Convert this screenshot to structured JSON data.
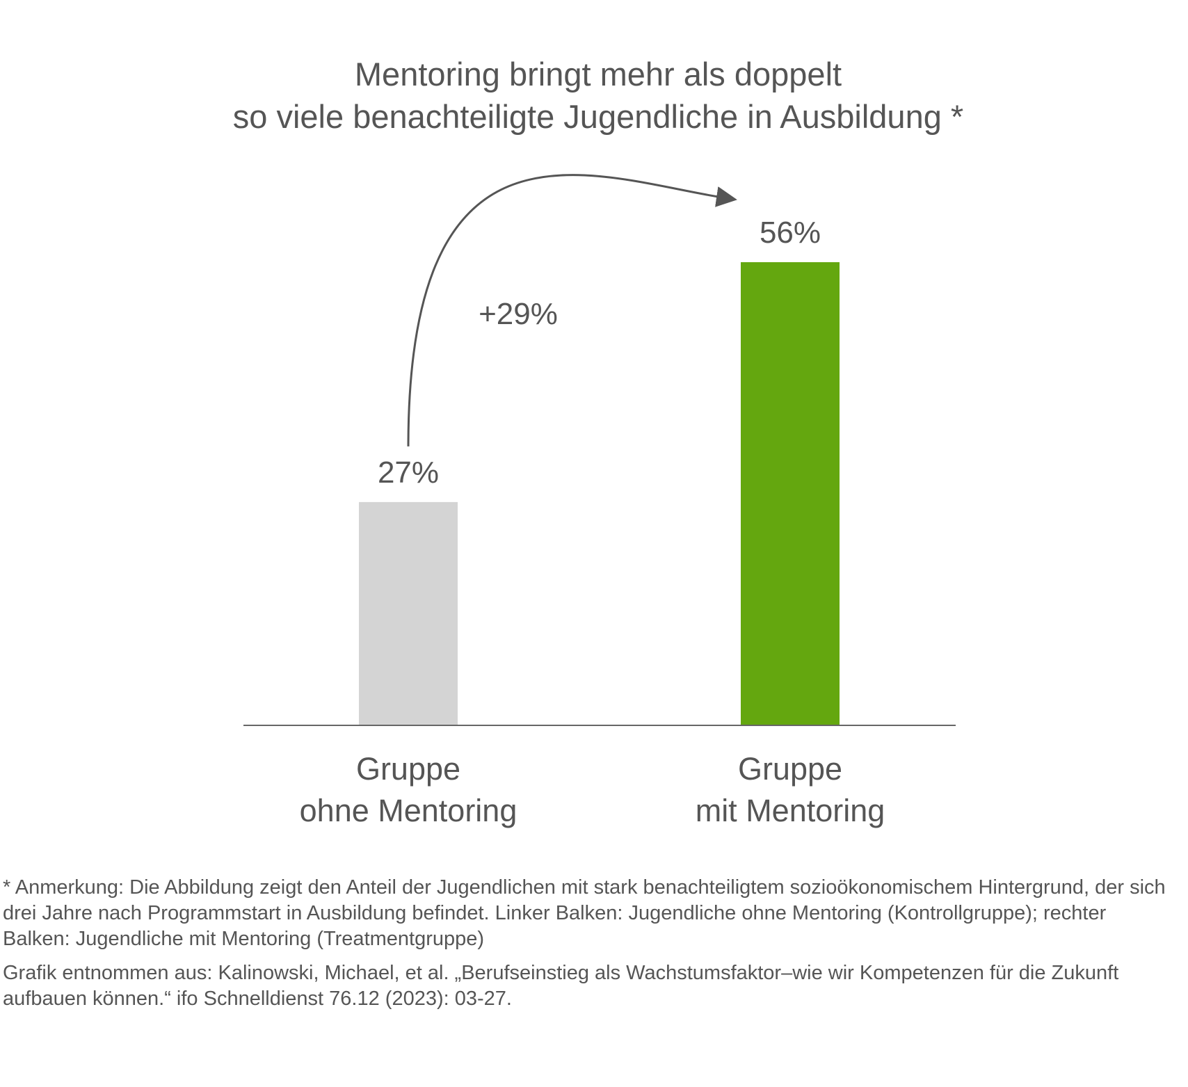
{
  "chart_data": {
    "type": "bar",
    "title": [
      "Mentoring bringt mehr als doppelt",
      "so viele benachteiligte Jugendliche in Ausbildung *"
    ],
    "categories": [
      [
        "Gruppe",
        "ohne Mentoring"
      ],
      [
        "Gruppe",
        "mit Mentoring"
      ]
    ],
    "values": [
      27,
      56
    ],
    "value_labels": [
      "27%",
      "56%"
    ],
    "unit": "%",
    "colors": [
      "#d4d4d4",
      "#64a70f"
    ],
    "ylim": [
      0,
      56
    ],
    "grid": false,
    "annotation": {
      "text": "+29%",
      "from": 0,
      "to": 1,
      "value": 29
    }
  },
  "notes": {
    "remark": "* Anmerkung: Die Abbildung zeigt den Anteil der Jugendlichen mit stark benachteiligtem sozioökonomischem Hintergrund, der sich drei Jahre nach Programmstart in Ausbildung befindet. Linker Balken: Jugendliche ohne Mentoring (Kontrollgruppe); rechter Balken: Jugendliche mit Mentoring (Treatmentgruppe)",
    "source": "Grafik entnommen aus: Kalinowski, Michael, et al. „Berufseinstieg als Wachstumsfaktor–wie wir Kompetenzen für die Zukunft aufbauen können.“ ifo Schnelldienst 76.12 (2023): 03-27."
  }
}
